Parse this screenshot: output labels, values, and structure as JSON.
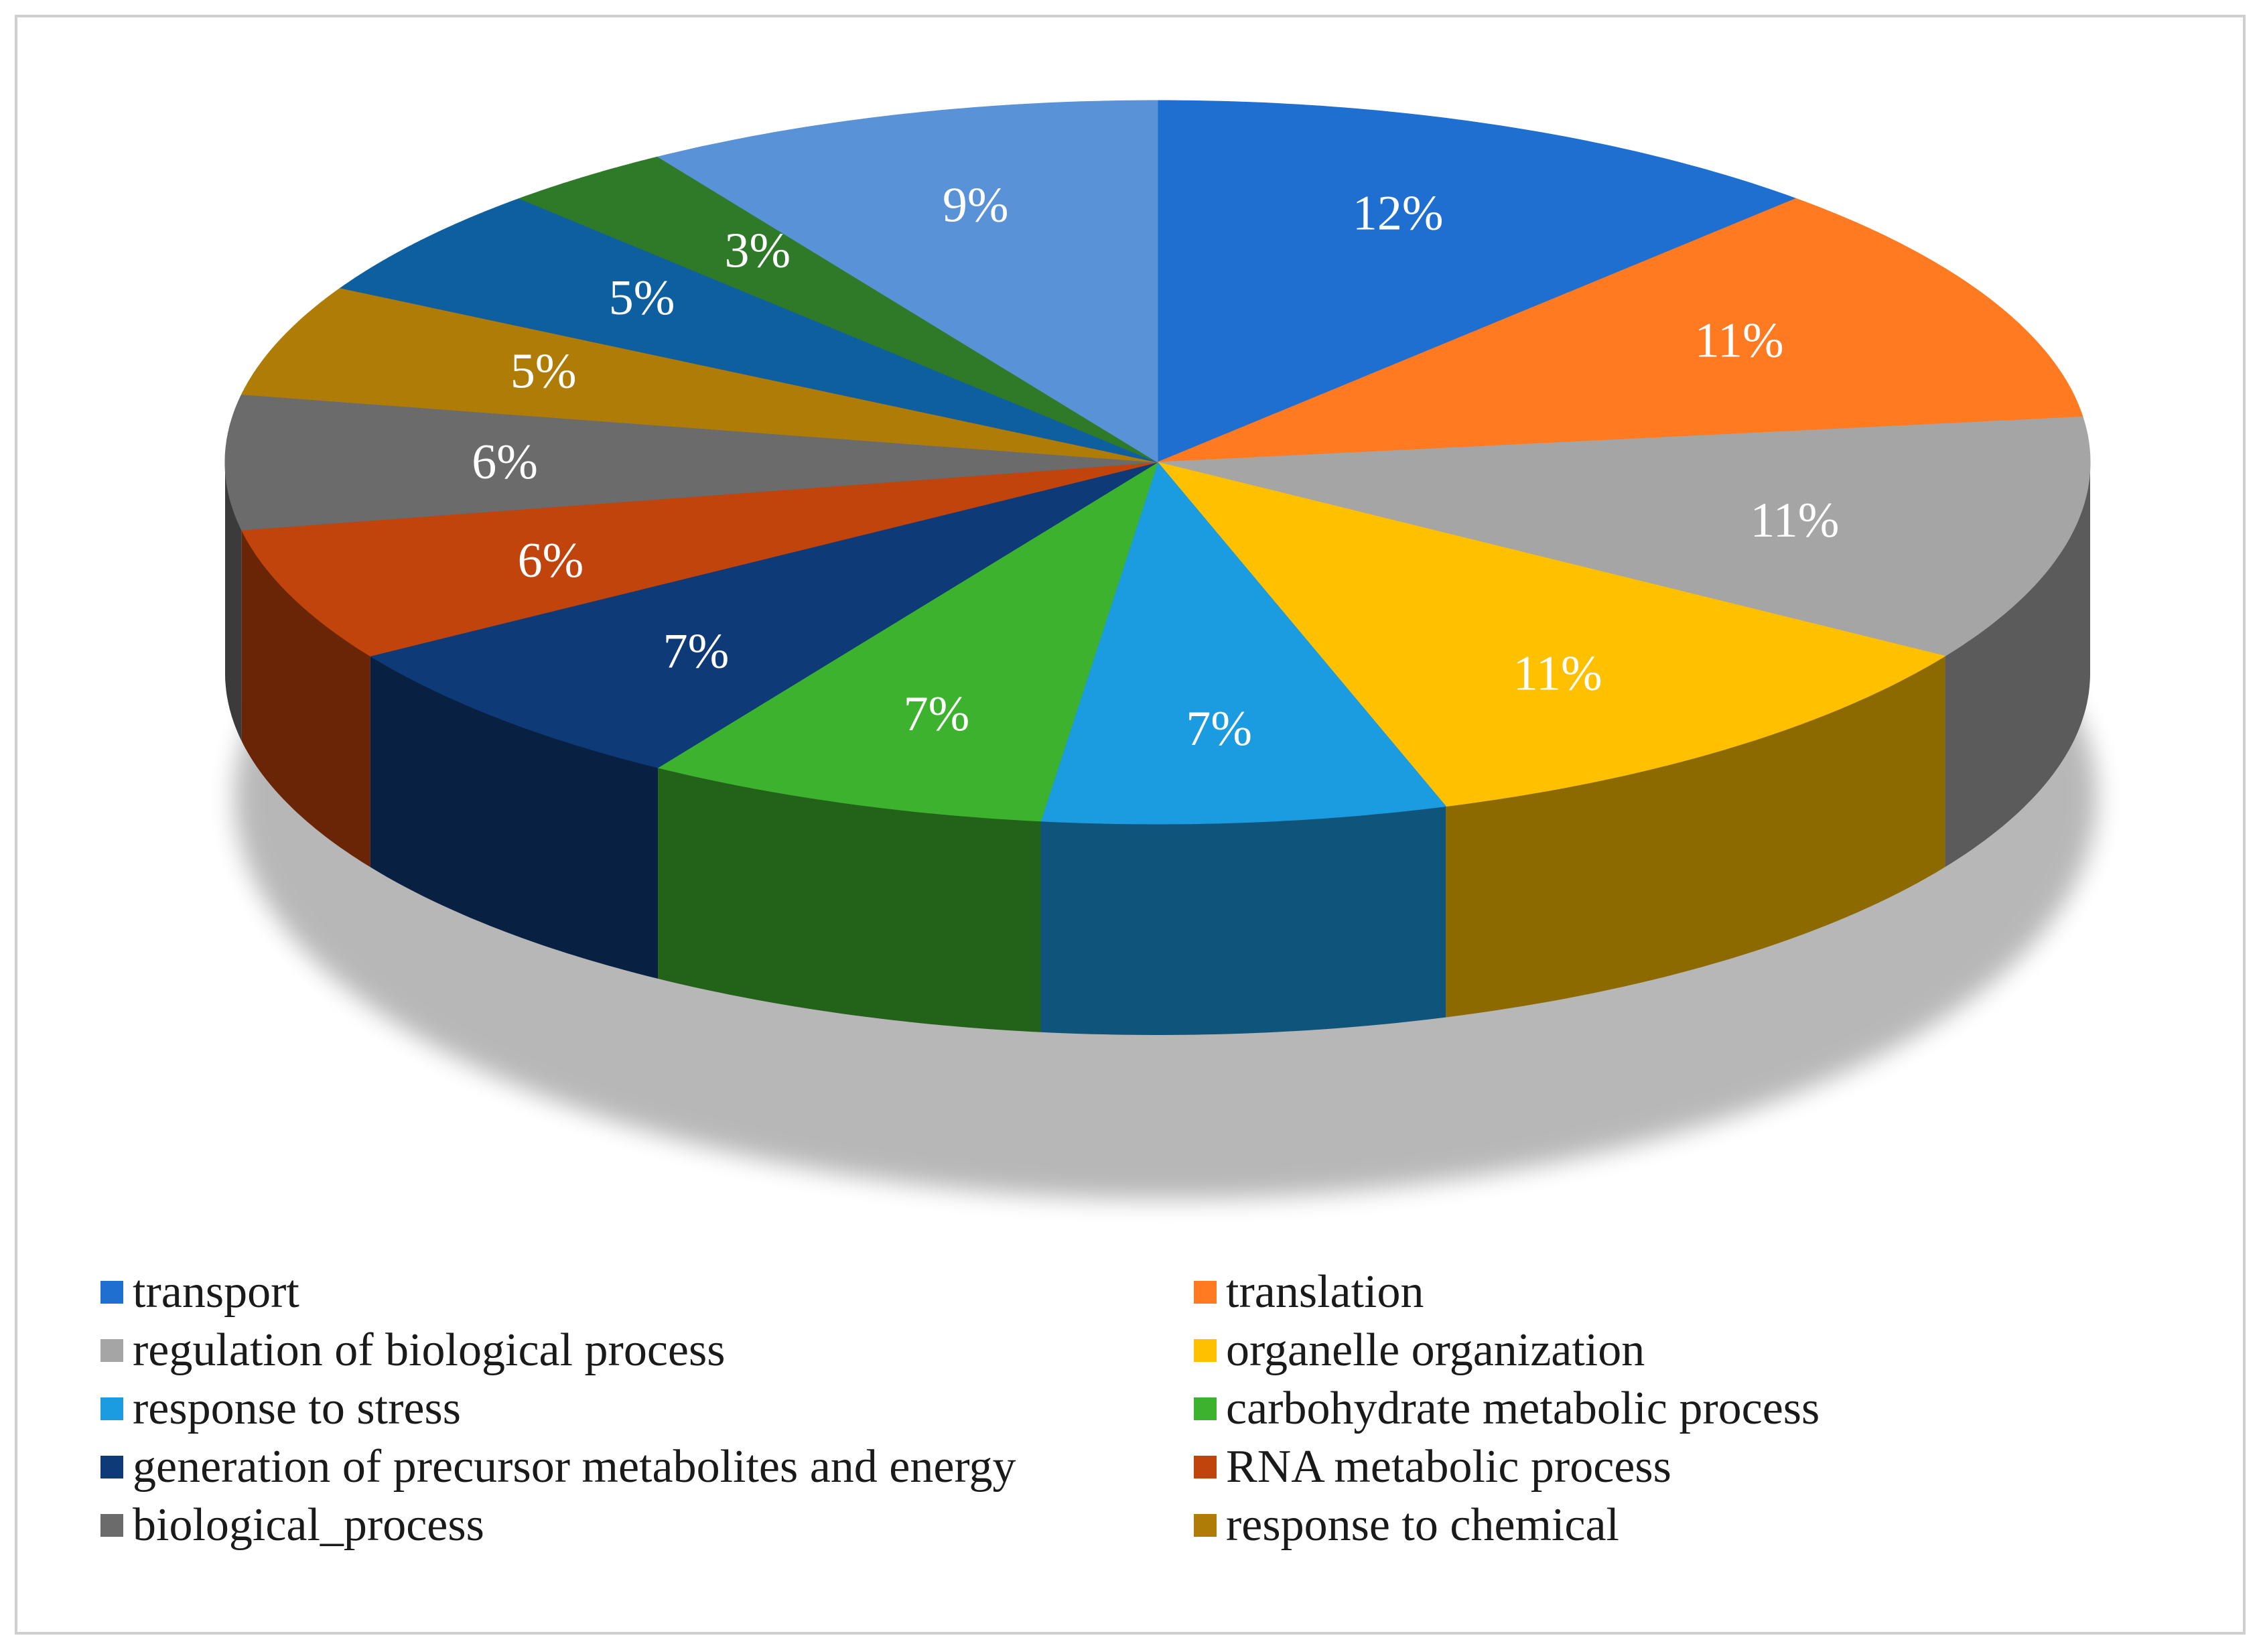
{
  "chart_data": {
    "type": "pie",
    "style": "3d",
    "title": "",
    "slices": [
      {
        "label": "transport",
        "value": 12,
        "display": "12%",
        "color": "#1F6FD0"
      },
      {
        "label": "translation",
        "value": 11,
        "display": "11%",
        "color": "#FF7A21"
      },
      {
        "label": "regulation of biological process",
        "value": 11,
        "display": "11%",
        "color": "#A5A5A5"
      },
      {
        "label": "organelle organization",
        "value": 11,
        "display": "11%",
        "color": "#FFC000"
      },
      {
        "label": "response to stress",
        "value": 7,
        "display": "7%",
        "color": "#1B9BE0"
      },
      {
        "label": "carbohydrate metabolic process",
        "value": 7,
        "display": "7%",
        "color": "#3DB22E"
      },
      {
        "label": "generation of precursor metabolites and energy",
        "value": 7,
        "display": "7%",
        "color": "#0E3A78"
      },
      {
        "label": "RNA metabolic process",
        "value": 6,
        "display": "6%",
        "color": "#C0440C"
      },
      {
        "label": "biological_process",
        "value": 6,
        "display": "6%",
        "color": "#6B6B6B"
      },
      {
        "label": "response to chemical",
        "value": 5,
        "display": "5%",
        "color": "#B07C08"
      },
      {
        "label": "",
        "value": 5,
        "display": "5%",
        "color": "#0E5FA0"
      },
      {
        "label": "",
        "value": 3,
        "display": "3%",
        "color": "#2E7A28"
      },
      {
        "label": "",
        "value": 9,
        "display": "9%",
        "color": "#5A92D8"
      }
    ]
  },
  "legend": {
    "items": [
      {
        "label": "transport",
        "color": "#1F6FD0"
      },
      {
        "label": "translation",
        "color": "#FF7A21"
      },
      {
        "label": "regulation of biological process",
        "color": "#A5A5A5"
      },
      {
        "label": "organelle organization",
        "color": "#FFC000"
      },
      {
        "label": "response to stress",
        "color": "#1B9BE0"
      },
      {
        "label": "carbohydrate metabolic process",
        "color": "#3DB22E"
      },
      {
        "label": "generation of precursor metabolites and energy",
        "color": "#0E3A78"
      },
      {
        "label": "RNA metabolic process",
        "color": "#C0440C"
      },
      {
        "label": "biological_process",
        "color": "#6B6B6B"
      },
      {
        "label": "response to chemical",
        "color": "#B07C08"
      }
    ]
  }
}
